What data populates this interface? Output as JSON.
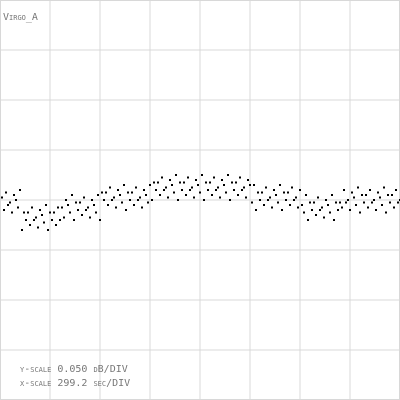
{
  "chart_data": {
    "type": "scatter",
    "title": "Virgo_A",
    "annotations": [
      "y-scale 0.050 dB/DIV",
      "x-scale  299.2 sec/DIV"
    ],
    "xlim": [
      0,
      8
    ],
    "ylim": [
      -4,
      4
    ],
    "xticks": [
      0,
      1,
      2,
      3,
      4,
      5,
      6,
      7,
      8
    ],
    "yticks": [
      -4,
      -3,
      -2,
      -1,
      0,
      1,
      2,
      3,
      4
    ],
    "grid": true,
    "color": "#000000",
    "x": [
      0,
      0.04,
      0.08,
      0.12,
      0.16,
      0.2,
      0.24,
      0.28,
      0.32,
      0.36,
      0.4,
      0.44,
      0.48,
      0.52,
      0.56,
      0.6,
      0.64,
      0.68,
      0.72,
      0.76,
      0.8,
      0.84,
      0.88,
      0.92,
      0.96,
      1,
      1.04,
      1.08,
      1.12,
      1.16,
      1.2,
      1.24,
      1.28,
      1.32,
      1.36,
      1.4,
      1.44,
      1.48,
      1.52,
      1.56,
      1.6,
      1.64,
      1.68,
      1.72,
      1.76,
      1.8,
      1.84,
      1.88,
      1.92,
      1.96,
      2,
      2.04,
      2.08,
      2.12,
      2.16,
      2.2,
      2.24,
      2.28,
      2.32,
      2.36,
      2.4,
      2.44,
      2.48,
      2.52,
      2.56,
      2.6,
      2.64,
      2.68,
      2.72,
      2.76,
      2.8,
      2.84,
      2.88,
      2.92,
      2.96,
      3,
      3.04,
      3.08,
      3.12,
      3.16,
      3.2,
      3.24,
      3.28,
      3.32,
      3.36,
      3.4,
      3.44,
      3.48,
      3.52,
      3.56,
      3.6,
      3.64,
      3.68,
      3.72,
      3.76,
      3.8,
      3.84,
      3.88,
      3.92,
      3.96,
      4,
      4.04,
      4.08,
      4.12,
      4.16,
      4.2,
      4.24,
      4.28,
      4.32,
      4.36,
      4.4,
      4.44,
      4.48,
      4.52,
      4.56,
      4.6,
      4.64,
      4.68,
      4.72,
      4.76,
      4.8,
      4.84,
      4.88,
      4.92,
      4.96,
      5,
      5.04,
      5.08,
      5.12,
      5.16,
      5.2,
      5.24,
      5.28,
      5.32,
      5.36,
      5.4,
      5.44,
      5.48,
      5.52,
      5.56,
      5.6,
      5.64,
      5.68,
      5.72,
      5.76,
      5.8,
      5.84,
      5.88,
      5.92,
      5.96,
      6,
      6.04,
      6.08,
      6.12,
      6.16,
      6.2,
      6.24,
      6.28,
      6.32,
      6.36,
      6.4,
      6.44,
      6.48,
      6.52,
      6.56,
      6.6,
      6.64,
      6.68,
      6.72,
      6.76,
      6.8,
      6.84,
      6.88,
      6.92,
      6.96,
      7,
      7.04,
      7.08,
      7.12,
      7.16,
      7.2,
      7.24,
      7.28,
      7.32,
      7.36,
      7.4,
      7.44,
      7.48,
      7.52,
      7.56,
      7.6,
      7.64,
      7.68,
      7.72,
      7.76,
      7.8,
      7.84,
      7.88,
      7.92,
      7.96
    ],
    "values": [
      0.05,
      -0.2,
      0.15,
      -0.1,
      -0.05,
      -0.25,
      0.1,
      0,
      -0.15,
      0.2,
      -0.6,
      -0.25,
      -0.4,
      -0.25,
      -0.5,
      -0.15,
      -0.4,
      -0.35,
      -0.55,
      -0.2,
      -0.3,
      -0.45,
      -0.1,
      -0.6,
      -0.25,
      -0.4,
      -0.25,
      -0.5,
      -0.15,
      -0.4,
      -0.15,
      -0.35,
      0,
      -0.1,
      -0.25,
      0.1,
      -0.4,
      -0.05,
      -0.2,
      -0.05,
      -0.3,
      0.05,
      -0.2,
      -0.15,
      -0.35,
      0,
      -0.1,
      -0.25,
      0.1,
      -0.4,
      0.15,
      0,
      0.15,
      -0.1,
      0.25,
      0,
      0.05,
      -0.15,
      0.2,
      0.1,
      -0.05,
      0.3,
      -0.2,
      0.15,
      0,
      0.15,
      -0.1,
      0.25,
      0,
      0.05,
      -0.15,
      0.2,
      0.1,
      -0.05,
      0.3,
      0,
      0.35,
      0.2,
      0.35,
      0.1,
      0.45,
      0.2,
      0.25,
      0.05,
      0.4,
      0.3,
      0.15,
      0.5,
      0,
      0.35,
      0.2,
      0.35,
      0.1,
      0.45,
      0.2,
      0.25,
      0.05,
      0.4,
      0.3,
      0.15,
      0.5,
      0,
      0.35,
      0.2,
      0.35,
      0.1,
      0.45,
      0.2,
      0.25,
      0.05,
      0.4,
      0.3,
      0.15,
      0.5,
      0,
      0.35,
      0.2,
      0.35,
      0.1,
      0.45,
      0.2,
      0.25,
      0.05,
      0.4,
      0.3,
      -0.05,
      0.3,
      -0.2,
      0.15,
      0,
      0.15,
      -0.1,
      0.25,
      0,
      0.05,
      -0.15,
      0.2,
      0.1,
      -0.05,
      0.3,
      -0.2,
      0.15,
      0,
      0.15,
      -0.1,
      0.25,
      0,
      0.05,
      -0.15,
      0.2,
      -0.1,
      -0.25,
      0.1,
      -0.4,
      -0.05,
      -0.2,
      -0.05,
      -0.3,
      0.05,
      -0.2,
      -0.15,
      -0.35,
      0,
      -0.1,
      -0.25,
      0.1,
      -0.4,
      -0.05,
      -0.2,
      -0.05,
      -0.15,
      0.2,
      -0.05,
      0,
      -0.2,
      0.15,
      0.05,
      -0.1,
      0.25,
      -0.25,
      0.1,
      -0.05,
      0.1,
      -0.15,
      0.2,
      -0.05,
      0,
      -0.2,
      0.15,
      0.05,
      -0.1,
      0.25,
      -0.25,
      0.1,
      -0.05,
      0.1,
      -0.15,
      0.2,
      -0.05,
      0
    ]
  }
}
